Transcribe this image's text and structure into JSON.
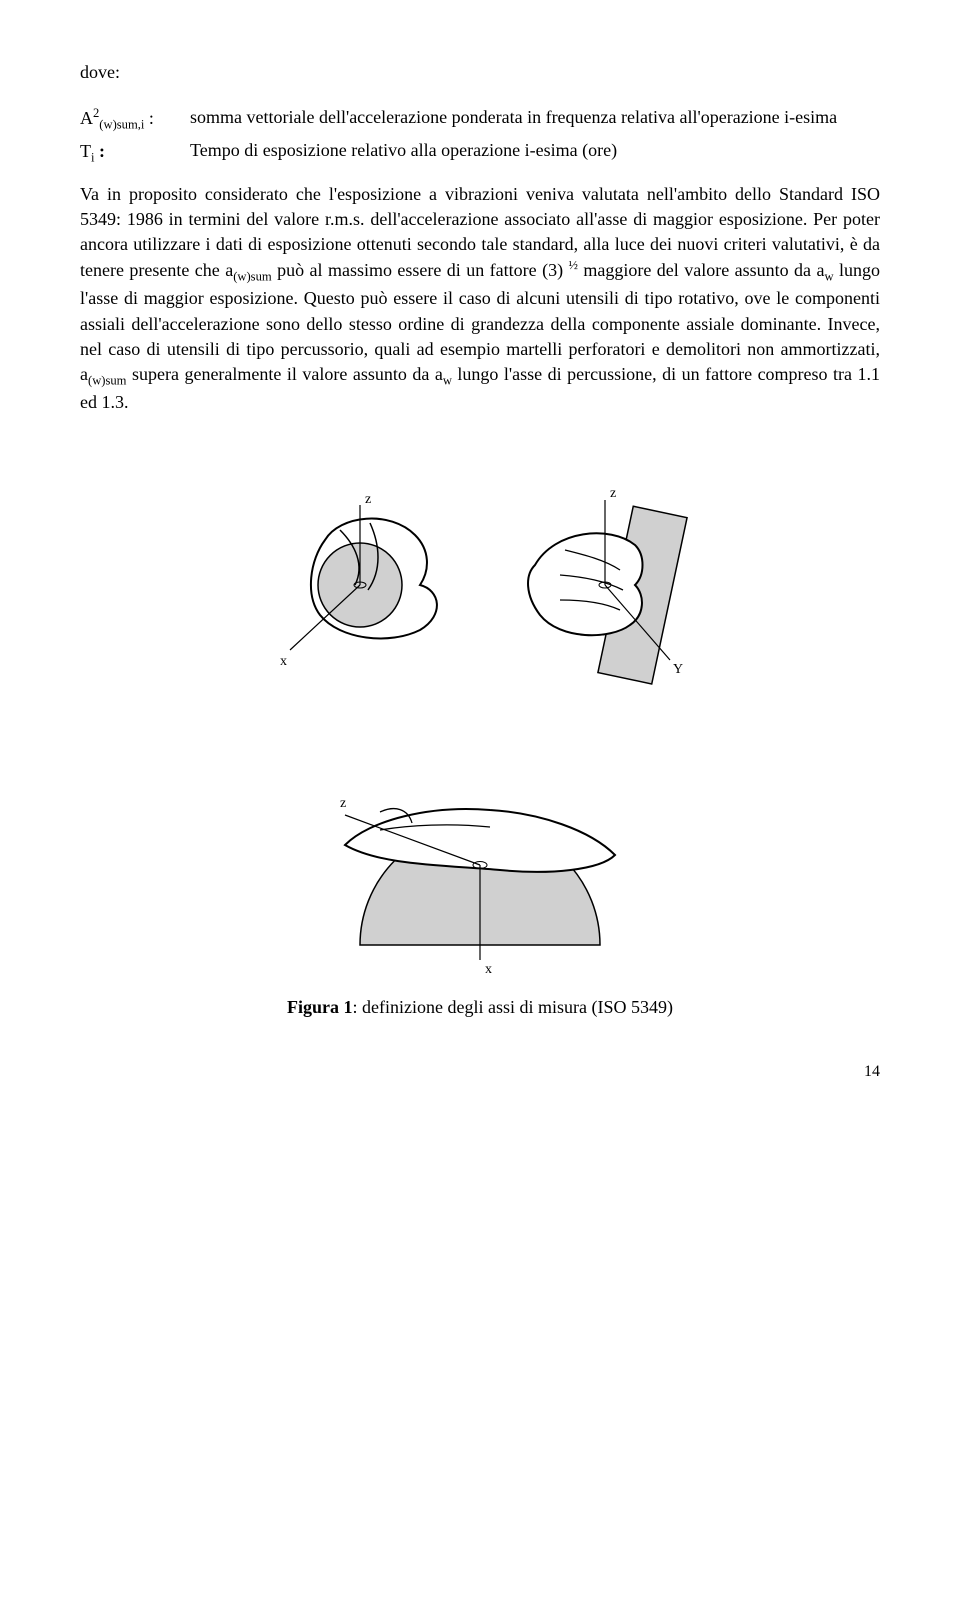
{
  "dove": "dove:",
  "defs": [
    {
      "sym_base": "A",
      "sym_sup": "2",
      "sym_sub": "(w)sum,i",
      "sym_tail": " :",
      "desc": "somma vettoriale dell'accelerazione ponderata in frequenza relativa all'operazione i-esima"
    },
    {
      "sym_base": "T",
      "sym_sup": "",
      "sym_sub": "i",
      "sym_tail": " :",
      "desc": "Tempo di esposizione relativo alla operazione i-esima (ore)"
    }
  ],
  "para_full": "Va in proposito considerato che l'esposizione a vibrazioni veniva valutata nell'ambito dello Standard ISO 5349: 1986 in termini del valore r.m.s. dell'accelerazione associato all'asse di maggior esposizione. Per poter ancora utilizzare i dati di esposizione ottenuti secondo tale standard, alla luce dei nuovi criteri valutativi, è da tenere presente che a(w)sum può al massimo essere di un fattore (3) ½ maggiore del valore assunto da aw lungo l'asse di maggior esposizione. Questo può essere il caso di alcuni utensili di tipo rotativo, ove le componenti assiali dell'accelerazione sono dello stesso ordine di grandezza della componente assiale dominante. Invece, nel caso di utensili di tipo percussorio, quali ad esempio martelli perforatori e demolitori non ammortizzati, a(w)sum supera generalmente il valore assunto da aw lungo l'asse di percussione, di un fattore compreso tra 1.1 ed 1.3.",
  "caption_bold": "Figura 1",
  "caption_rest": ": definizione degli assi di misura (ISO 5349)",
  "page_number": "14",
  "figure": {
    "stroke": "#000000",
    "fill_gray": "#d0d0d0",
    "bg": "#ffffff",
    "axis_labels": {
      "top_left_z": "z",
      "top_left_x": "x",
      "top_right_z": "z",
      "top_right_y": "Y",
      "bottom_z": "z",
      "bottom_x": "x"
    }
  }
}
